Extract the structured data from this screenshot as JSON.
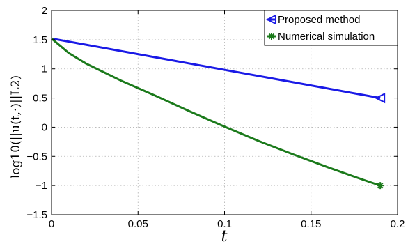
{
  "chart_data": {
    "type": "line",
    "xlabel": "t",
    "ylabel": "log10(||u(t,·)||L2)",
    "xlim": [
      0,
      0.2
    ],
    "ylim": [
      -1.5,
      2
    ],
    "xticks": [
      0,
      0.05,
      0.1,
      0.15,
      0.2
    ],
    "xtick_labels": [
      "0",
      "0.05",
      "0.1",
      "0.15",
      "0.2"
    ],
    "yticks": [
      -1.5,
      -1,
      -0.5,
      0,
      0.5,
      1,
      1.5,
      2
    ],
    "ytick_labels": [
      "−1.5",
      "−1",
      "−0.5",
      "0",
      "0.5",
      "1",
      "1.5",
      "2"
    ],
    "grid": true,
    "legend_position": "top-right",
    "series": [
      {
        "name": "Proposed method",
        "color": "#1a1ae6",
        "marker": "triangle-left",
        "x": [
          0,
          0.19
        ],
        "y": [
          1.52,
          0.5
        ]
      },
      {
        "name": "Numerical simulation",
        "color": "#1b7a1b",
        "marker": "star",
        "x": [
          0,
          0.01,
          0.02,
          0.04,
          0.06,
          0.08,
          0.1,
          0.12,
          0.14,
          0.16,
          0.18,
          0.19
        ],
        "y": [
          1.52,
          1.27,
          1.09,
          0.8,
          0.54,
          0.27,
          0.01,
          -0.24,
          -0.47,
          -0.69,
          -0.9,
          -1.0
        ]
      }
    ]
  }
}
